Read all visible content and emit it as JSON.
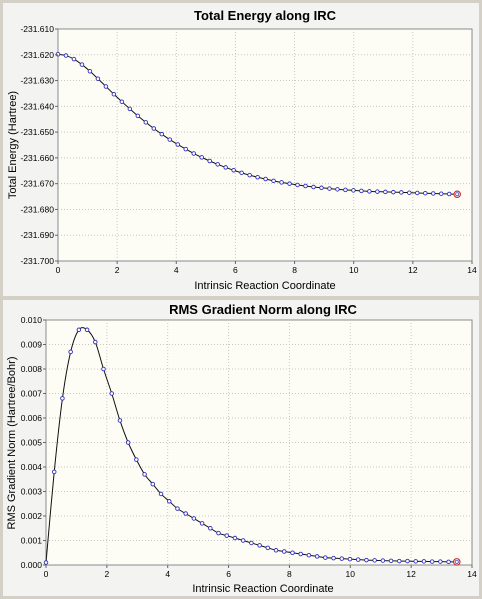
{
  "chart_data": [
    {
      "type": "line",
      "title": "Total Energy along IRC",
      "xlabel": "Intrinsic Reaction Coordinate",
      "ylabel": "Total Energy (Hartree)",
      "xlim": [
        0,
        14
      ],
      "ylim": [
        -231.7,
        -231.61
      ],
      "xticks": [
        "0",
        "2",
        "4",
        "6",
        "8",
        "10",
        "12",
        "14"
      ],
      "yticks": [
        "-231.610",
        "-231.620",
        "-231.630",
        "-231.640",
        "-231.650",
        "-231.660",
        "-231.670",
        "-231.680",
        "-231.690",
        "-231.700"
      ],
      "grid": true,
      "x": [
        0,
        0.27,
        0.54,
        0.81,
        1.08,
        1.35,
        1.62,
        1.89,
        2.16,
        2.43,
        2.7,
        2.97,
        3.24,
        3.51,
        3.78,
        4.05,
        4.32,
        4.59,
        4.86,
        5.13,
        5.4,
        5.67,
        5.94,
        6.21,
        6.48,
        6.75,
        7.02,
        7.29,
        7.56,
        7.83,
        8.1,
        8.37,
        8.64,
        8.91,
        9.18,
        9.45,
        9.72,
        9.99,
        10.26,
        10.53,
        10.8,
        11.07,
        11.34,
        11.61,
        11.88,
        12.15,
        12.42,
        12.69,
        12.96,
        13.23,
        13.5
      ],
      "values": [
        -231.6198,
        -231.6203,
        -231.6217,
        -231.6238,
        -231.6264,
        -231.6293,
        -231.6323,
        -231.6353,
        -231.6382,
        -231.641,
        -231.6437,
        -231.6462,
        -231.6486,
        -231.6508,
        -231.6529,
        -231.6548,
        -231.6566,
        -231.6583,
        -231.6598,
        -231.6612,
        -231.6625,
        -231.6637,
        -231.6648,
        -231.6658,
        -231.6667,
        -231.6675,
        -231.6682,
        -231.6689,
        -231.6695,
        -231.67,
        -231.6705,
        -231.6709,
        -231.6713,
        -231.6716,
        -231.6719,
        -231.6722,
        -231.6724,
        -231.6726,
        -231.6728,
        -231.673,
        -231.6731,
        -231.6732,
        -231.6733,
        -231.6734,
        -231.6735,
        -231.6736,
        -231.6737,
        -231.6738,
        -231.6739,
        -231.674,
        -231.6741
      ]
    },
    {
      "type": "line",
      "title": "RMS Gradient Norm along IRC",
      "xlabel": "Intrinsic Reaction Coordinate",
      "ylabel": "RMS Gradient Norm (Hartree/Bohr)",
      "xlim": [
        0,
        14
      ],
      "ylim": [
        0,
        0.01
      ],
      "xticks": [
        "0",
        "2",
        "4",
        "6",
        "8",
        "10",
        "12",
        "14"
      ],
      "yticks": [
        "0.010",
        "0.009",
        "0.008",
        "0.007",
        "0.006",
        "0.005",
        "0.004",
        "0.003",
        "0.002",
        "0.001",
        "0.000"
      ],
      "grid": true,
      "x": [
        0,
        0.27,
        0.54,
        0.81,
        1.08,
        1.35,
        1.62,
        1.89,
        2.16,
        2.43,
        2.7,
        2.97,
        3.24,
        3.51,
        3.78,
        4.05,
        4.32,
        4.59,
        4.86,
        5.13,
        5.4,
        5.67,
        5.94,
        6.21,
        6.48,
        6.75,
        7.02,
        7.29,
        7.56,
        7.83,
        8.1,
        8.37,
        8.64,
        8.91,
        9.18,
        9.45,
        9.72,
        9.99,
        10.26,
        10.53,
        10.8,
        11.07,
        11.34,
        11.61,
        11.88,
        12.15,
        12.42,
        12.69,
        12.96,
        13.23,
        13.5
      ],
      "values": [
        0.0001,
        0.0038,
        0.0068,
        0.0087,
        0.0096,
        0.0096,
        0.0091,
        0.008,
        0.007,
        0.0059,
        0.005,
        0.0043,
        0.0037,
        0.0033,
        0.0029,
        0.0026,
        0.0023,
        0.0021,
        0.0019,
        0.0017,
        0.0015,
        0.0013,
        0.0012,
        0.0011,
        0.001,
        0.0009,
        0.0008,
        0.0007,
        0.0006,
        0.00055,
        0.0005,
        0.00045,
        0.0004,
        0.00035,
        0.0003,
        0.00028,
        0.00026,
        0.00024,
        0.00022,
        0.0002,
        0.00019,
        0.00018,
        0.00017,
        0.00016,
        0.00016,
        0.00015,
        0.00015,
        0.00014,
        0.00014,
        0.00013,
        0.00013
      ]
    }
  ]
}
